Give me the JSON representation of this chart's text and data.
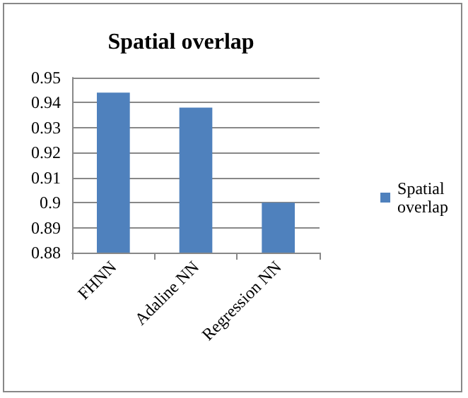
{
  "chart_data": {
    "type": "bar",
    "title": "Spatial overlap",
    "categories": [
      "FHNN",
      "Adaline NN",
      "Regression NN"
    ],
    "series": [
      {
        "name": "Spatial overlap",
        "color": "#4f81bd",
        "values": [
          0.944,
          0.938,
          0.9
        ]
      }
    ],
    "ylim": [
      0.88,
      0.95
    ],
    "yticks": [
      0.88,
      0.89,
      0.9,
      0.91,
      0.92,
      0.93,
      0.94,
      0.95
    ],
    "grid": "y",
    "legend": "right"
  }
}
